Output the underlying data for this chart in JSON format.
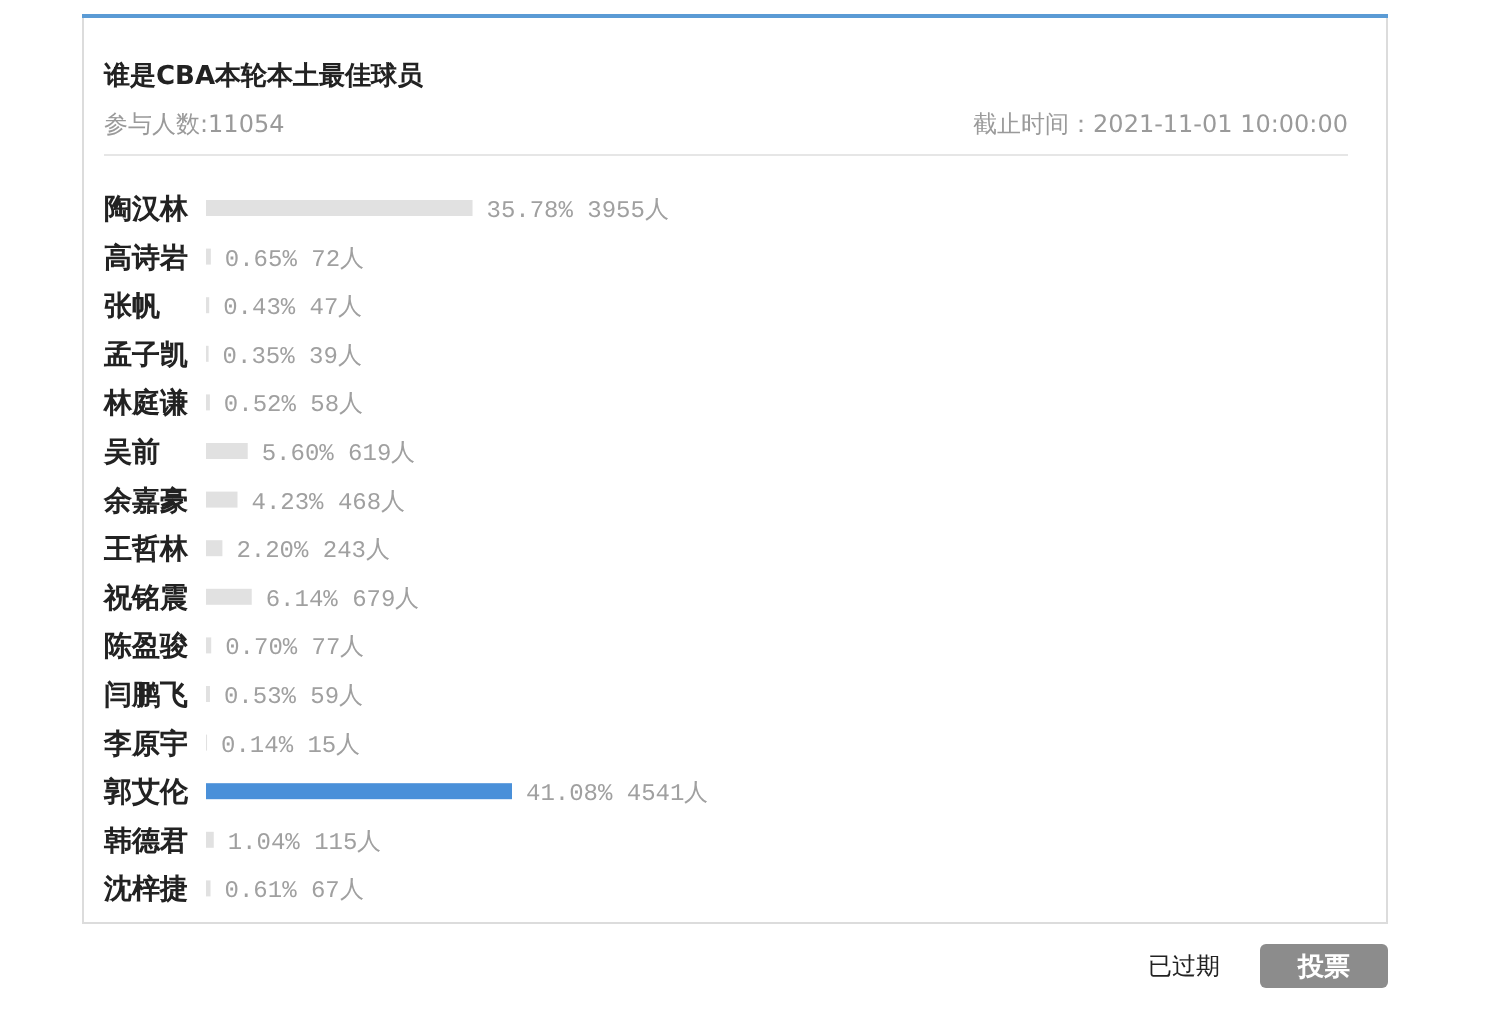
{
  "chart_data": {
    "type": "bar",
    "orientation": "horizontal",
    "title": "谁是CBA本轮本土最佳球员",
    "subtitle": "参与人数:11054",
    "categories": [
      "陶汉林",
      "高诗岩",
      "张帆",
      "孟子凯",
      "林庭谦",
      "吴前",
      "余嘉豪",
      "王哲林",
      "祝铭震",
      "陈盈骏",
      "闫鹏飞",
      "李原宇",
      "郭艾伦",
      "韩德君",
      "沈梓捷"
    ],
    "values": [
      35.78,
      0.65,
      0.43,
      0.35,
      0.52,
      5.6,
      4.23,
      2.2,
      6.14,
      0.7,
      0.53,
      0.14,
      41.08,
      1.04,
      0.61
    ],
    "colors": [
      "#e1e1e1",
      "#e1e1e1",
      "#e1e1e1",
      "#e1e1e1",
      "#e1e1e1",
      "#e1e1e1",
      "#e1e1e1",
      "#e1e1e1",
      "#e1e1e1",
      "#e1e1e1",
      "#e1e1e1",
      "#e1e1e1",
      "#4a90d9",
      "#e1e1e1",
      "#e1e1e1"
    ],
    "value_labels": [
      "35.78% 3955人",
      "0.65% 72人",
      "0.43% 47人",
      "0.35% 39人",
      "0.52% 58人",
      "5.60% 619人",
      "4.23% 468人",
      "2.20% 243人",
      "6.14% 679人",
      "0.70% 77人",
      "0.53% 59人",
      "0.14% 15人",
      "41.08% 4541人",
      "1.04% 115人",
      "0.61% 67人"
    ],
    "annotations": [
      "截止时间：2021-11-01 10:00:00",
      "已过期",
      "投票"
    ]
  }
}
